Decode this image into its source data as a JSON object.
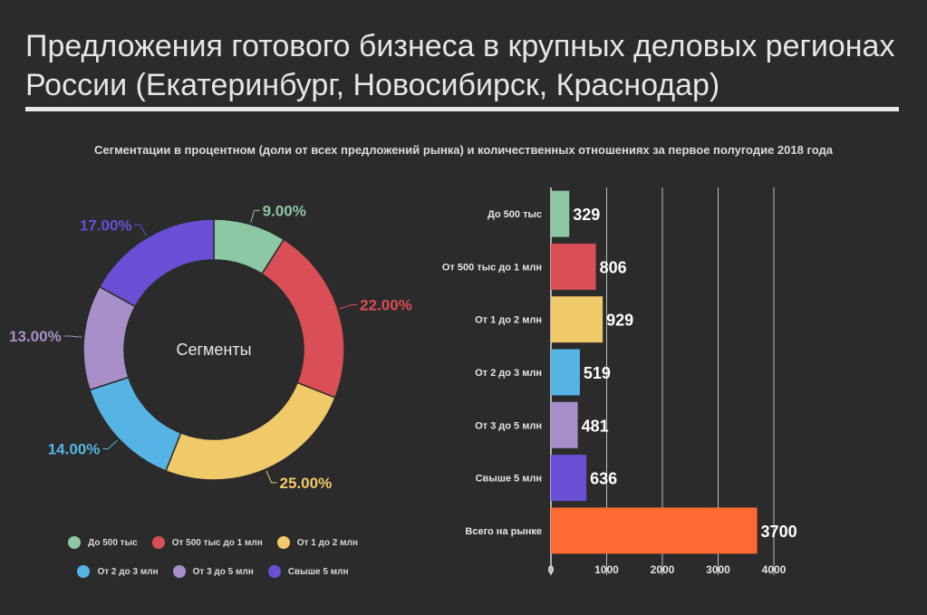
{
  "header": {
    "title": "Предложения готового бизнеса в крупных деловых регионах России (Екатеринбург, Новосибирск, Краснодар)",
    "subtitle": "Сегментации в процентном (доли от всех предложений рынка) и количественных отношениях за первое полугодие 2018 года"
  },
  "chart_data": [
    {
      "type": "pie",
      "variant": "donut",
      "center_label": "Сегменты",
      "categories": [
        "До 500 тыс",
        "От 500 тыс до 1 млн",
        "От 1 до 2 млн",
        "От 2 до 3 млн",
        "От 3 до 5 млн",
        "Свыше 5 млн"
      ],
      "values": [
        9.0,
        22.0,
        25.0,
        14.0,
        13.0,
        17.0
      ],
      "value_labels": [
        "9.00%",
        "22.00%",
        "25.00%",
        "14.00%",
        "13.00%",
        "17.00%"
      ],
      "colors": [
        "#8cc8a4",
        "#d94f55",
        "#f0c969",
        "#56b4e4",
        "#a98fc9",
        "#6a4fd6"
      ],
      "legend_position": "bottom"
    },
    {
      "type": "bar",
      "orientation": "horizontal",
      "categories": [
        "До 500 тыс",
        "От 500 тыс до 1 млн",
        "От 1 до 2 млн",
        "От 2 до 3 млн",
        "От 3 до 5 млн",
        "Свыше 5 млн",
        "Всего на рынке"
      ],
      "values": [
        329,
        806,
        929,
        519,
        481,
        636,
        3700
      ],
      "colors": [
        "#8cc8a4",
        "#d94f55",
        "#f0c969",
        "#56b4e4",
        "#a98fc9",
        "#6a4fd6",
        "#ff6a33"
      ],
      "xlim": [
        0,
        4000
      ],
      "xticks": [
        0,
        1000,
        2000,
        3000,
        4000
      ],
      "grid": true
    }
  ]
}
